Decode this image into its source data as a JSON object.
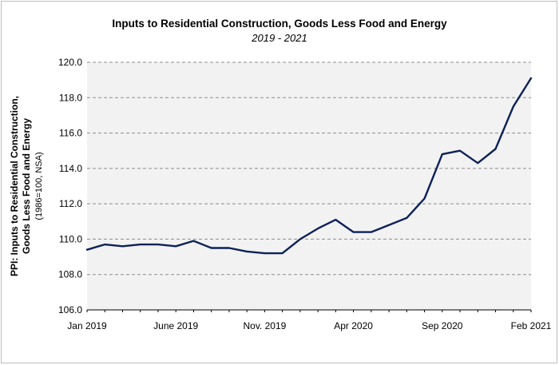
{
  "chart_data": {
    "type": "line",
    "title": "Inputs to Residential Construction, Goods Less Food and Energy",
    "subtitle": "2019 - 2021",
    "ylabel_lines": [
      "PPI: Inputs to Residential Construction,",
      "Goods Less Food and Energy"
    ],
    "ylabel_note": "(1986=100, NSA)",
    "ylim": [
      106.0,
      120.0
    ],
    "yticks": [
      "106.0",
      "108.0",
      "110.0",
      "112.0",
      "114.0",
      "116.0",
      "118.0",
      "120.0"
    ],
    "xtick_labels": [
      {
        "index": 0,
        "label": "Jan 2019"
      },
      {
        "index": 5,
        "label": "June 2019"
      },
      {
        "index": 10,
        "label": "Nov. 2019"
      },
      {
        "index": 15,
        "label": "Apr 2020"
      },
      {
        "index": 20,
        "label": "Sep 2020"
      },
      {
        "index": 25,
        "label": "Feb 2021"
      }
    ],
    "grid": true,
    "series": [
      {
        "color": "#0c2159",
        "x": [
          "Jan 2019",
          "Feb 2019",
          "Mar 2019",
          "Apr 2019",
          "May 2019",
          "June 2019",
          "Jul 2019",
          "Aug 2019",
          "Sep 2019",
          "Oct 2019",
          "Nov. 2019",
          "Dec 2019",
          "Jan 2020",
          "Feb 2020",
          "Mar 2020",
          "Apr 2020",
          "May 2020",
          "Jun 2020",
          "Jul 2020",
          "Aug 2020",
          "Sep 2020",
          "Oct 2020",
          "Nov 2020",
          "Dec 2020",
          "Jan 2021",
          "Feb 2021"
        ],
        "values": [
          109.4,
          109.7,
          109.6,
          109.7,
          109.7,
          109.6,
          109.9,
          109.5,
          109.5,
          109.3,
          109.2,
          109.2,
          110.0,
          110.6,
          111.1,
          110.4,
          110.4,
          110.8,
          111.2,
          112.3,
          114.8,
          115.0,
          114.3,
          115.1,
          117.5,
          119.1
        ]
      }
    ]
  }
}
